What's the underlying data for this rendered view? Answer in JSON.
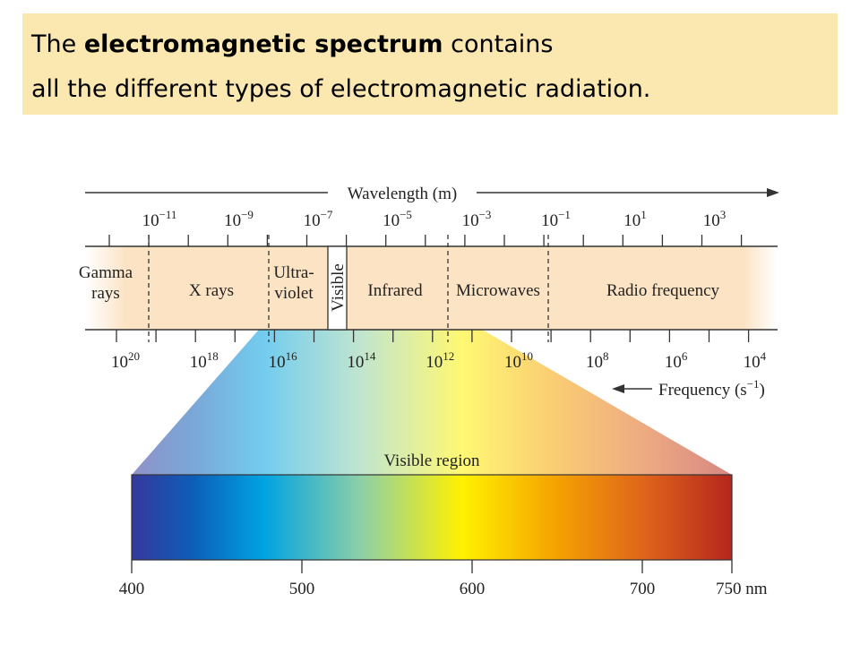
{
  "header": {
    "title_lead": "The ",
    "title_bold": "electromagnetic spectrum",
    "title_tail": " contains",
    "title_line2": "all the different types of electromagnetic radiation."
  },
  "wavelength": {
    "label": "Wavelength (m)",
    "ticks": [
      {
        "base": "10",
        "exp": "−11"
      },
      {
        "base": "10",
        "exp": "−9"
      },
      {
        "base": "10",
        "exp": "−7"
      },
      {
        "base": "10",
        "exp": "−5"
      },
      {
        "base": "10",
        "exp": "−3"
      },
      {
        "base": "10",
        "exp": "−1"
      },
      {
        "base": "10",
        "exp": "1"
      },
      {
        "base": "10",
        "exp": "3"
      }
    ]
  },
  "regions": [
    {
      "lines": [
        "Gamma",
        "rays"
      ]
    },
    {
      "lines": [
        "X rays"
      ]
    },
    {
      "lines": [
        "Ultra-",
        "violet"
      ]
    },
    {
      "lines": [
        "Visible"
      ]
    },
    {
      "lines": [
        "Infrared"
      ]
    },
    {
      "lines": [
        "Microwaves"
      ]
    },
    {
      "lines": [
        "Radio frequency"
      ]
    }
  ],
  "frequency": {
    "label_text": "Frequency (s",
    "label_exp": "−1",
    "label_close": ")",
    "ticks": [
      {
        "base": "10",
        "exp": "20"
      },
      {
        "base": "10",
        "exp": "18"
      },
      {
        "base": "10",
        "exp": "16"
      },
      {
        "base": "10",
        "exp": "14"
      },
      {
        "base": "10",
        "exp": "12"
      },
      {
        "base": "10",
        "exp": "10"
      },
      {
        "base": "10",
        "exp": "8"
      },
      {
        "base": "10",
        "exp": "6"
      },
      {
        "base": "10",
        "exp": "4"
      }
    ]
  },
  "visible_region": {
    "label": "Visible region",
    "ticks": [
      "400",
      "500",
      "600",
      "700",
      "750 nm"
    ]
  }
}
